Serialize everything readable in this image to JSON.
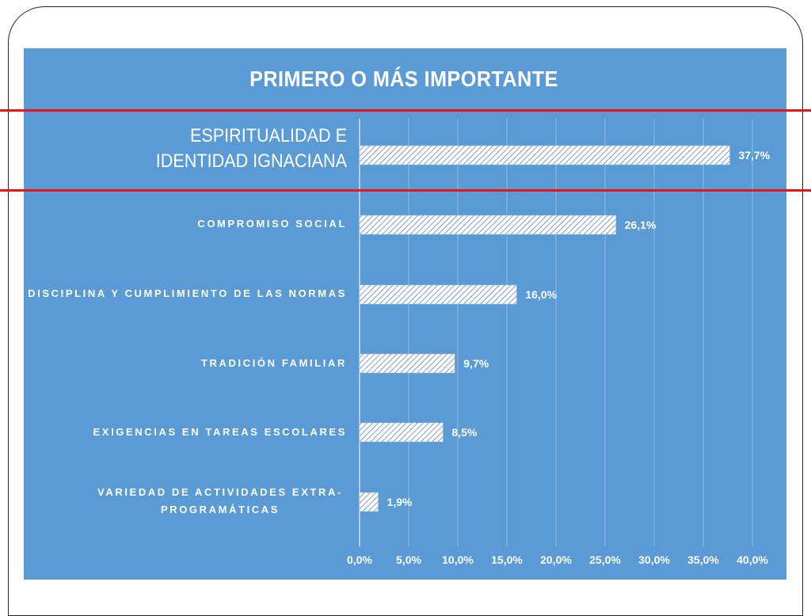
{
  "chart_data": {
    "type": "bar",
    "orientation": "horizontal",
    "title": "PRIMERO O MÁS IMPORTANTE",
    "categories": [
      "ESPIRITUALIDAD E IDENTIDAD IGNACIANA",
      "COMPROMISO SOCIAL",
      "DISCIPLINA Y CUMPLIMIENTO DE LAS NORMAS",
      "TRADICIÓN FAMILIAR",
      "EXIGENCIAS EN TAREAS ESCOLARES",
      "VARIEDAD DE ACTIVIDADES EXTRA-PROGRAMÁTICAS"
    ],
    "values": [
      37.7,
      26.1,
      16.0,
      9.7,
      8.5,
      1.9
    ],
    "value_labels": [
      "37,7%",
      "26,1%",
      "16,0%",
      "9,7%",
      "8,5%",
      "1,9%"
    ],
    "xlim": [
      0,
      40
    ],
    "x_ticks": [
      "0,0%",
      "5,0%",
      "10,0%",
      "15,0%",
      "20,0%",
      "25,0%",
      "30,0%",
      "35,0%",
      "40,0%"
    ],
    "grid": true,
    "legend": "none"
  },
  "labels": {
    "cat0_line1": "ESPIRITUALIDAD E",
    "cat0_line2": "IDENTIDAD IGNACIANA",
    "cat1": "COMPROMISO SOCIAL",
    "cat2": "DISCIPLINA Y CUMPLIMIENTO DE LAS NORMAS",
    "cat3": "TRADICIÓN FAMILIAR",
    "cat4": "EXIGENCIAS EN TAREAS ESCOLARES",
    "cat5_line1": "VARIEDAD DE ACTIVIDADES EXTRA-",
    "cat5_line2": "PROGRAMÁTICAS"
  },
  "colors": {
    "panel": "#5b9bd5",
    "bar_fill": "#ffffff",
    "bar_hatch": "#7f9fc4",
    "highlight_lines": "#e8141a",
    "text": "#ffffff",
    "grid": "#8db9e3"
  }
}
